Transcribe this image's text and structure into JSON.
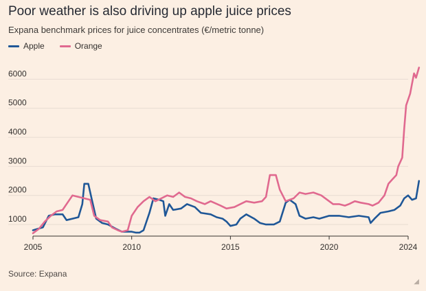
{
  "header": {
    "title": "Poor weather is also driving up apple juice prices",
    "subtitle": "Expana benchmark prices for juice concentrates (€/metric tonne)"
  },
  "footer": {
    "source": "Source: Expana"
  },
  "colors": {
    "background": "#fcefe3",
    "apple": "#1f5797",
    "orange": "#e0698f",
    "grid": "#e7dcd2",
    "axis": "#33302e"
  },
  "chart_data": {
    "type": "line",
    "title": "Poor weather is also driving up apple juice prices",
    "subtitle": "Expana benchmark prices for juice concentrates (€/metric tonne)",
    "xlabel": "",
    "ylabel": "",
    "xlim": [
      2005,
      2024
    ],
    "ylim": [
      600,
      6600
    ],
    "x_ticks": [
      2005,
      2010,
      2015,
      2020,
      2024
    ],
    "y_ticks": [
      1000,
      2000,
      3000,
      4000,
      5000,
      6000
    ],
    "grid": true,
    "legend": "top-left",
    "series": [
      {
        "name": "Apple",
        "color": "#1f5797",
        "points": [
          [
            2005.0,
            800
          ],
          [
            2005.5,
            900
          ],
          [
            2005.8,
            1300
          ],
          [
            2006.1,
            1350
          ],
          [
            2006.5,
            1350
          ],
          [
            2006.7,
            1150
          ],
          [
            2007.0,
            1200
          ],
          [
            2007.3,
            1250
          ],
          [
            2007.5,
            1700
          ],
          [
            2007.6,
            2400
          ],
          [
            2007.8,
            2400
          ],
          [
            2008.0,
            1800
          ],
          [
            2008.2,
            1200
          ],
          [
            2008.5,
            1050
          ],
          [
            2008.8,
            1000
          ],
          [
            2009.2,
            850
          ],
          [
            2009.5,
            750
          ],
          [
            2010.0,
            750
          ],
          [
            2010.2,
            720
          ],
          [
            2010.4,
            720
          ],
          [
            2010.6,
            800
          ],
          [
            2010.9,
            1400
          ],
          [
            2011.1,
            1900
          ],
          [
            2011.4,
            1850
          ],
          [
            2011.6,
            1800
          ],
          [
            2011.7,
            1300
          ],
          [
            2011.9,
            1700
          ],
          [
            2012.1,
            1500
          ],
          [
            2012.5,
            1550
          ],
          [
            2012.8,
            1700
          ],
          [
            2013.2,
            1600
          ],
          [
            2013.5,
            1400
          ],
          [
            2014.0,
            1350
          ],
          [
            2014.3,
            1250
          ],
          [
            2014.6,
            1200
          ],
          [
            2014.8,
            1100
          ],
          [
            2015.0,
            950
          ],
          [
            2015.3,
            1000
          ],
          [
            2015.5,
            1200
          ],
          [
            2015.8,
            1350
          ],
          [
            2016.2,
            1200
          ],
          [
            2016.5,
            1050
          ],
          [
            2016.8,
            1000
          ],
          [
            2017.2,
            1000
          ],
          [
            2017.5,
            1100
          ],
          [
            2017.8,
            1750
          ],
          [
            2018.0,
            1850
          ],
          [
            2018.3,
            1700
          ],
          [
            2018.5,
            1300
          ],
          [
            2018.8,
            1200
          ],
          [
            2019.2,
            1250
          ],
          [
            2019.5,
            1200
          ],
          [
            2020.0,
            1300
          ],
          [
            2020.5,
            1300
          ],
          [
            2021.0,
            1250
          ],
          [
            2021.5,
            1300
          ],
          [
            2022.0,
            1250
          ],
          [
            2022.1,
            1050
          ],
          [
            2022.3,
            1200
          ],
          [
            2022.6,
            1400
          ],
          [
            2023.0,
            1450
          ],
          [
            2023.3,
            1500
          ],
          [
            2023.6,
            1650
          ],
          [
            2023.8,
            1900
          ],
          [
            2024.0,
            2000
          ],
          [
            2024.2,
            1850
          ],
          [
            2024.4,
            1900
          ],
          [
            2024.55,
            2500
          ]
        ]
      },
      {
        "name": "Orange",
        "color": "#e0698f",
        "points": [
          [
            2005.0,
            700
          ],
          [
            2005.3,
            850
          ],
          [
            2005.6,
            1100
          ],
          [
            2005.9,
            1300
          ],
          [
            2006.2,
            1450
          ],
          [
            2006.5,
            1500
          ],
          [
            2006.8,
            1800
          ],
          [
            2007.0,
            2000
          ],
          [
            2007.3,
            1950
          ],
          [
            2007.6,
            1900
          ],
          [
            2007.9,
            1850
          ],
          [
            2008.1,
            1300
          ],
          [
            2008.4,
            1150
          ],
          [
            2008.8,
            1100
          ],
          [
            2009.0,
            900
          ],
          [
            2009.3,
            800
          ],
          [
            2009.5,
            750
          ],
          [
            2009.8,
            800
          ],
          [
            2010.0,
            1300
          ],
          [
            2010.3,
            1600
          ],
          [
            2010.6,
            1800
          ],
          [
            2010.9,
            1950
          ],
          [
            2011.2,
            1800
          ],
          [
            2011.5,
            1900
          ],
          [
            2011.8,
            2000
          ],
          [
            2012.1,
            1950
          ],
          [
            2012.4,
            2100
          ],
          [
            2012.7,
            1950
          ],
          [
            2013.0,
            1900
          ],
          [
            2013.3,
            1800
          ],
          [
            2013.7,
            1700
          ],
          [
            2014.0,
            1800
          ],
          [
            2014.5,
            1650
          ],
          [
            2014.8,
            1550
          ],
          [
            2015.2,
            1600
          ],
          [
            2015.5,
            1700
          ],
          [
            2015.8,
            1800
          ],
          [
            2016.2,
            1750
          ],
          [
            2016.6,
            1800
          ],
          [
            2016.8,
            1950
          ],
          [
            2017.0,
            2700
          ],
          [
            2017.3,
            2700
          ],
          [
            2017.5,
            2200
          ],
          [
            2017.8,
            1800
          ],
          [
            2018.2,
            1900
          ],
          [
            2018.5,
            2100
          ],
          [
            2018.8,
            2050
          ],
          [
            2019.2,
            2100
          ],
          [
            2019.6,
            2000
          ],
          [
            2019.9,
            1850
          ],
          [
            2020.2,
            1700
          ],
          [
            2020.5,
            1700
          ],
          [
            2020.8,
            1650
          ],
          [
            2021.0,
            1700
          ],
          [
            2021.3,
            1800
          ],
          [
            2021.6,
            1750
          ],
          [
            2022.0,
            1700
          ],
          [
            2022.2,
            1650
          ],
          [
            2022.5,
            1750
          ],
          [
            2022.8,
            2000
          ],
          [
            2023.0,
            2400
          ],
          [
            2023.2,
            2550
          ],
          [
            2023.4,
            2700
          ],
          [
            2023.5,
            3000
          ],
          [
            2023.7,
            3300
          ],
          [
            2023.8,
            4300
          ],
          [
            2023.9,
            5100
          ],
          [
            2024.0,
            5300
          ],
          [
            2024.1,
            5500
          ],
          [
            2024.2,
            5850
          ],
          [
            2024.3,
            6200
          ],
          [
            2024.4,
            6050
          ],
          [
            2024.55,
            6400
          ]
        ]
      }
    ]
  }
}
